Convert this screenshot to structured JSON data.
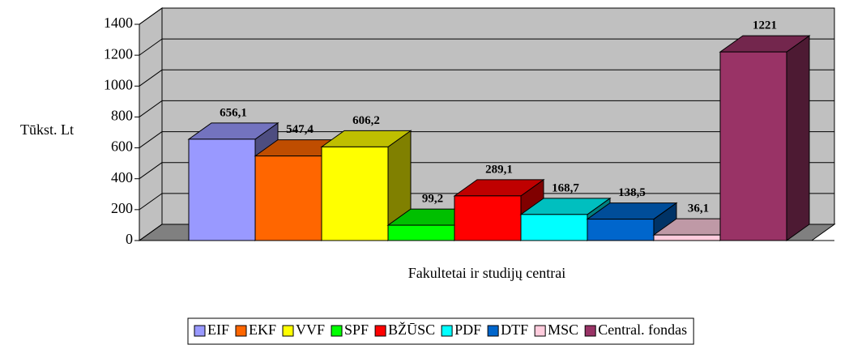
{
  "chart_data": {
    "type": "bar3d",
    "ylabel": "Tūkst. Lt",
    "xlabel": "Fakultetai ir studijų centrai",
    "categories": [
      "EIF",
      "EKF",
      "VVF",
      "SPF",
      "BŽŪSC",
      "PDF",
      "DTF",
      "MSC",
      "Central. fondas"
    ],
    "values": [
      656.1,
      547.4,
      606.2,
      99.2,
      289.1,
      168.7,
      138.5,
      36.1,
      1221
    ],
    "value_labels": [
      "656,1",
      "547,4",
      "606,2",
      "99,2",
      "289,1",
      "168,7",
      "138,5",
      "36,1",
      "1221"
    ],
    "colors": [
      "#9999ff",
      "#ff6600",
      "#ffff00",
      "#00ff00",
      "#ff0000",
      "#00ffff",
      "#0066cc",
      "#ffccdd",
      "#993366"
    ],
    "ylim": [
      0,
      1400
    ],
    "yticks": [
      0,
      200,
      400,
      600,
      800,
      1000,
      1200,
      1400
    ],
    "grid": true
  }
}
